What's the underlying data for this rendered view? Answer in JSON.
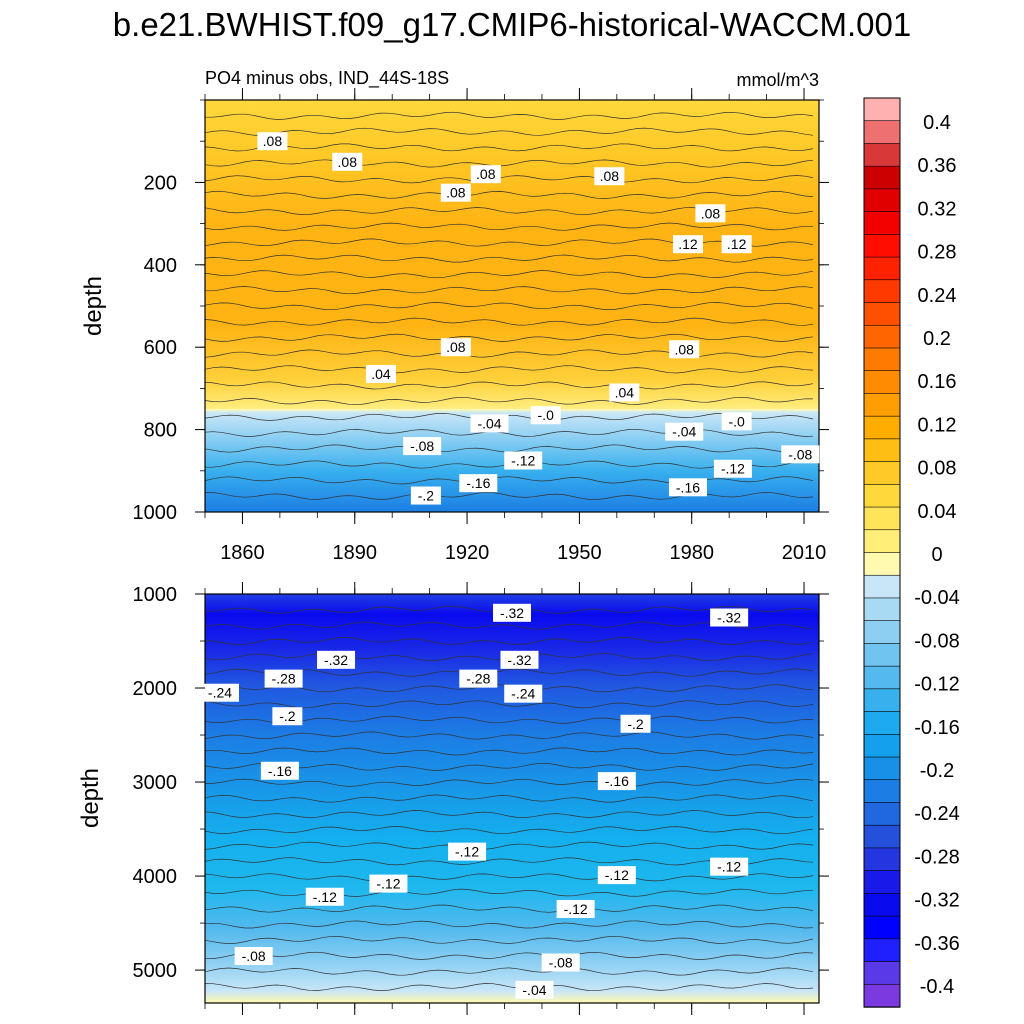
{
  "title": "b.e21.BWHIST.f09_g17.CMIP6-historical-WACCM.001",
  "colors": {
    "positive": [
      "#fffab0",
      "#ffee78",
      "#ffe45a",
      "#ffd83c",
      "#ffca28",
      "#ffbe14",
      "#ffae00",
      "#ff9e00",
      "#ff8c00",
      "#ff7a00",
      "#ff6600",
      "#ff5000",
      "#ff3a00",
      "#ff2200",
      "#ff0e00",
      "#f20000",
      "#e00000",
      "#cc0000",
      "#d83838",
      "#ee7070",
      "#ffb0b0"
    ],
    "negative": [
      "#c8e6f8",
      "#a8daf4",
      "#8ccff2",
      "#70c4f0",
      "#54b9ee",
      "#38b0ee",
      "#1eaaee",
      "#14a0ec",
      "#1890e8",
      "#1c7ee4",
      "#2068e0",
      "#2450dc",
      "#2436e0",
      "#1a1ae8",
      "#0a0aee",
      "#0000ff",
      "#2020ff",
      "#5a3ae8",
      "#7a3ae0"
    ]
  },
  "chart_data": {
    "type": "heatmap",
    "subtitle": "PO4 minus obs, IND_44S-18S",
    "units": "mmol/m^3",
    "xlim": [
      1850,
      2014
    ],
    "x_ticks": [
      "1860",
      "1890",
      "1920",
      "1950",
      "1980",
      "2010"
    ],
    "top_panel": {
      "ylabel": "depth",
      "ylim": [
        0,
        1000
      ],
      "y_ticks": [
        "200",
        "400",
        "600",
        "800",
        "1000"
      ],
      "contour_labels": [
        {
          "text": ".08",
          "x": 1868,
          "y": 100
        },
        {
          "text": ".08",
          "x": 1888,
          "y": 150
        },
        {
          "text": ".08",
          "x": 1917,
          "y": 225
        },
        {
          "text": ".08",
          "x": 1925,
          "y": 180
        },
        {
          "text": ".08",
          "x": 1958,
          "y": 185
        },
        {
          "text": ".08",
          "x": 1985,
          "y": 275
        },
        {
          "text": ".12",
          "x": 1979,
          "y": 350
        },
        {
          "text": ".12",
          "x": 1992,
          "y": 350
        },
        {
          "text": ".08",
          "x": 1917,
          "y": 600
        },
        {
          "text": ".08",
          "x": 1978,
          "y": 605
        },
        {
          "text": ".04",
          "x": 1897,
          "y": 665
        },
        {
          "text": ".04",
          "x": 1962,
          "y": 710
        },
        {
          "text": "-.04",
          "x": 1926,
          "y": 785
        },
        {
          "text": "-.0",
          "x": 1941,
          "y": 765
        },
        {
          "text": "-.04",
          "x": 1978,
          "y": 805
        },
        {
          "text": "-.0",
          "x": 1992,
          "y": 780
        },
        {
          "text": "-.08",
          "x": 1908,
          "y": 840
        },
        {
          "text": "-.12",
          "x": 1935,
          "y": 875
        },
        {
          "text": "-.12",
          "x": 1991,
          "y": 895
        },
        {
          "text": "-.08",
          "x": 2009,
          "y": 860
        },
        {
          "text": "-.16",
          "x": 1923,
          "y": 930
        },
        {
          "text": "-.16",
          "x": 1979,
          "y": 940
        },
        {
          "text": "-.2",
          "x": 1909,
          "y": 960
        }
      ]
    },
    "bottom_panel": {
      "ylabel": "depth",
      "ylim": [
        1000,
        5350
      ],
      "y_ticks": [
        "1000",
        "2000",
        "3000",
        "4000",
        "5000"
      ],
      "contour_labels": [
        {
          "text": "-.32",
          "x": 1932,
          "y": 1200
        },
        {
          "text": "-.32",
          "x": 1990,
          "y": 1250
        },
        {
          "text": "-.32",
          "x": 1885,
          "y": 1700
        },
        {
          "text": "-.32",
          "x": 1934,
          "y": 1700
        },
        {
          "text": "-.28",
          "x": 1871,
          "y": 1900
        },
        {
          "text": "-.28",
          "x": 1923,
          "y": 1900
        },
        {
          "text": "-.24",
          "x": 1854,
          "y": 2050
        },
        {
          "text": "-.24",
          "x": 1935,
          "y": 2060
        },
        {
          "text": "-.2",
          "x": 1872,
          "y": 2300
        },
        {
          "text": "-.2",
          "x": 1965,
          "y": 2380
        },
        {
          "text": "-.16",
          "x": 1870,
          "y": 2880
        },
        {
          "text": "-.16",
          "x": 1960,
          "y": 2990
        },
        {
          "text": "-.12",
          "x": 1920,
          "y": 3740
        },
        {
          "text": "-.12",
          "x": 1960,
          "y": 3990
        },
        {
          "text": "-.12",
          "x": 1990,
          "y": 3900
        },
        {
          "text": "-.12",
          "x": 1899,
          "y": 4080
        },
        {
          "text": "-.12",
          "x": 1882,
          "y": 4220
        },
        {
          "text": "-.12",
          "x": 1949,
          "y": 4350
        },
        {
          "text": "-.08",
          "x": 1863,
          "y": 4850
        },
        {
          "text": "-.08",
          "x": 1945,
          "y": 4920
        },
        {
          "text": "-.04",
          "x": 1938,
          "y": 5210
        }
      ]
    },
    "colorbar": {
      "min": -0.42,
      "max": 0.42,
      "tick_labels": [
        "0.4",
        "0.36",
        "0.32",
        "0.28",
        "0.24",
        "0.2",
        "0.16",
        "0.12",
        "0.08",
        "0.04",
        "0",
        "-0.04",
        "-0.08",
        "-0.12",
        "-0.16",
        "-0.2",
        "-0.24",
        "-0.28",
        "-0.32",
        "-0.36",
        "-0.4"
      ]
    }
  }
}
